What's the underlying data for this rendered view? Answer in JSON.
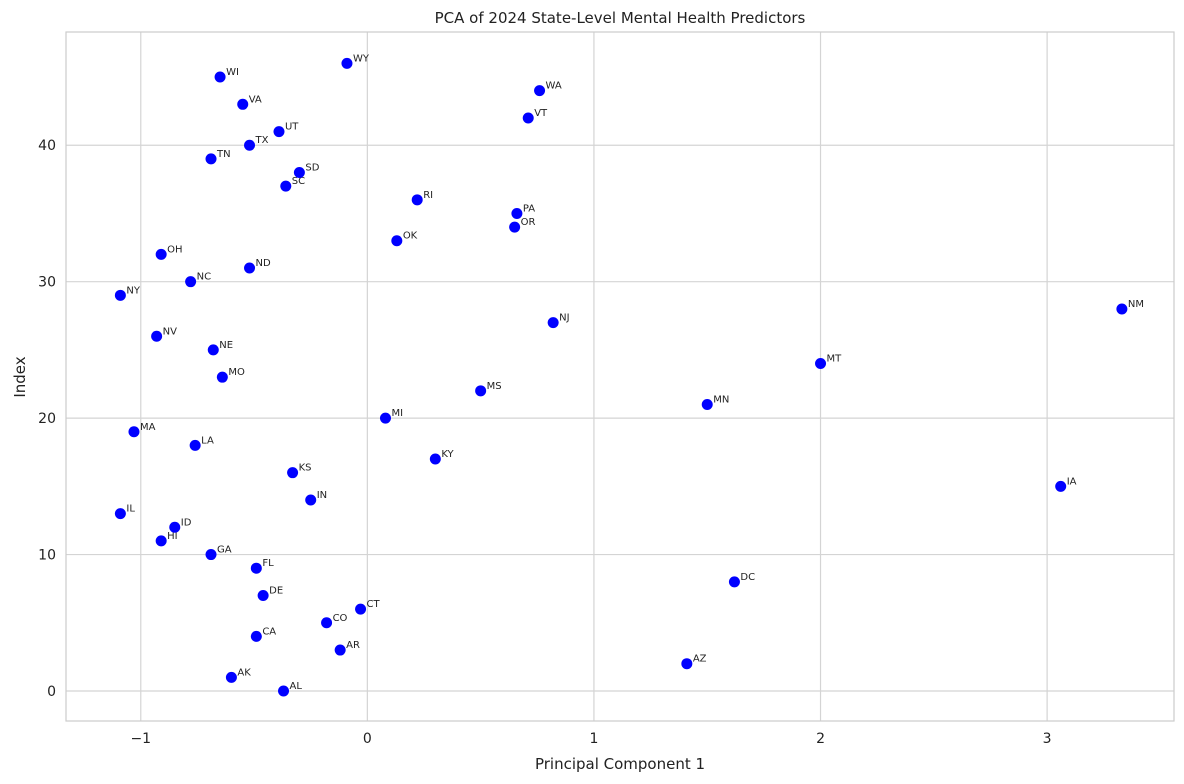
{
  "chart_data": {
    "type": "scatter",
    "title": "PCA of 2024 State-Level Mental Health Predictors",
    "xlabel": "Principal Component 1",
    "ylabel": "Index",
    "xlim": [
      -1.33,
      3.56
    ],
    "ylim": [
      -2.2,
      48.3
    ],
    "x_ticks": [
      -1,
      0,
      1,
      2,
      3
    ],
    "y_ticks": [
      0,
      10,
      20,
      30,
      40
    ],
    "grid": true,
    "marker_color": "#0000ff",
    "points": [
      {
        "label": "AL",
        "x": -0.37,
        "y": 0
      },
      {
        "label": "AK",
        "x": -0.6,
        "y": 1
      },
      {
        "label": "AZ",
        "x": 1.41,
        "y": 2
      },
      {
        "label": "AR",
        "x": -0.12,
        "y": 3
      },
      {
        "label": "CA",
        "x": -0.49,
        "y": 4
      },
      {
        "label": "CO",
        "x": -0.18,
        "y": 5
      },
      {
        "label": "CT",
        "x": -0.03,
        "y": 6
      },
      {
        "label": "DE",
        "x": -0.46,
        "y": 7
      },
      {
        "label": "DC",
        "x": 1.62,
        "y": 8
      },
      {
        "label": "FL",
        "x": -0.49,
        "y": 9
      },
      {
        "label": "GA",
        "x": -0.69,
        "y": 10
      },
      {
        "label": "HI",
        "x": -0.91,
        "y": 11
      },
      {
        "label": "ID",
        "x": -0.85,
        "y": 12
      },
      {
        "label": "IL",
        "x": -1.09,
        "y": 13
      },
      {
        "label": "IN",
        "x": -0.25,
        "y": 14
      },
      {
        "label": "IA",
        "x": 3.06,
        "y": 15
      },
      {
        "label": "KS",
        "x": -0.33,
        "y": 16
      },
      {
        "label": "KY",
        "x": 0.3,
        "y": 17
      },
      {
        "label": "LA",
        "x": -0.76,
        "y": 18
      },
      {
        "label": "MA",
        "x": -1.03,
        "y": 19
      },
      {
        "label": "MI",
        "x": 0.08,
        "y": 20
      },
      {
        "label": "MN",
        "x": 1.5,
        "y": 21
      },
      {
        "label": "MS",
        "x": 0.5,
        "y": 22
      },
      {
        "label": "MO",
        "x": -0.64,
        "y": 23
      },
      {
        "label": "MT",
        "x": 2.0,
        "y": 24
      },
      {
        "label": "NE",
        "x": -0.68,
        "y": 25
      },
      {
        "label": "NV",
        "x": -0.93,
        "y": 26
      },
      {
        "label": "NJ",
        "x": 0.82,
        "y": 27
      },
      {
        "label": "NM",
        "x": 3.33,
        "y": 28
      },
      {
        "label": "NY",
        "x": -1.09,
        "y": 29
      },
      {
        "label": "NC",
        "x": -0.78,
        "y": 30
      },
      {
        "label": "ND",
        "x": -0.52,
        "y": 31
      },
      {
        "label": "OH",
        "x": -0.91,
        "y": 32
      },
      {
        "label": "OK",
        "x": 0.13,
        "y": 33
      },
      {
        "label": "OR",
        "x": 0.65,
        "y": 34
      },
      {
        "label": "PA",
        "x": 0.66,
        "y": 35
      },
      {
        "label": "RI",
        "x": 0.22,
        "y": 36
      },
      {
        "label": "SC",
        "x": -0.36,
        "y": 37
      },
      {
        "label": "SD",
        "x": -0.3,
        "y": 38
      },
      {
        "label": "TN",
        "x": -0.69,
        "y": 39
      },
      {
        "label": "TX",
        "x": -0.52,
        "y": 40
      },
      {
        "label": "UT",
        "x": -0.39,
        "y": 41
      },
      {
        "label": "VT",
        "x": 0.71,
        "y": 42
      },
      {
        "label": "VA",
        "x": -0.55,
        "y": 43
      },
      {
        "label": "WA",
        "x": 0.76,
        "y": 44
      },
      {
        "label": "WI",
        "x": -0.65,
        "y": 45
      },
      {
        "label": "WY",
        "x": -0.09,
        "y": 46
      }
    ]
  }
}
